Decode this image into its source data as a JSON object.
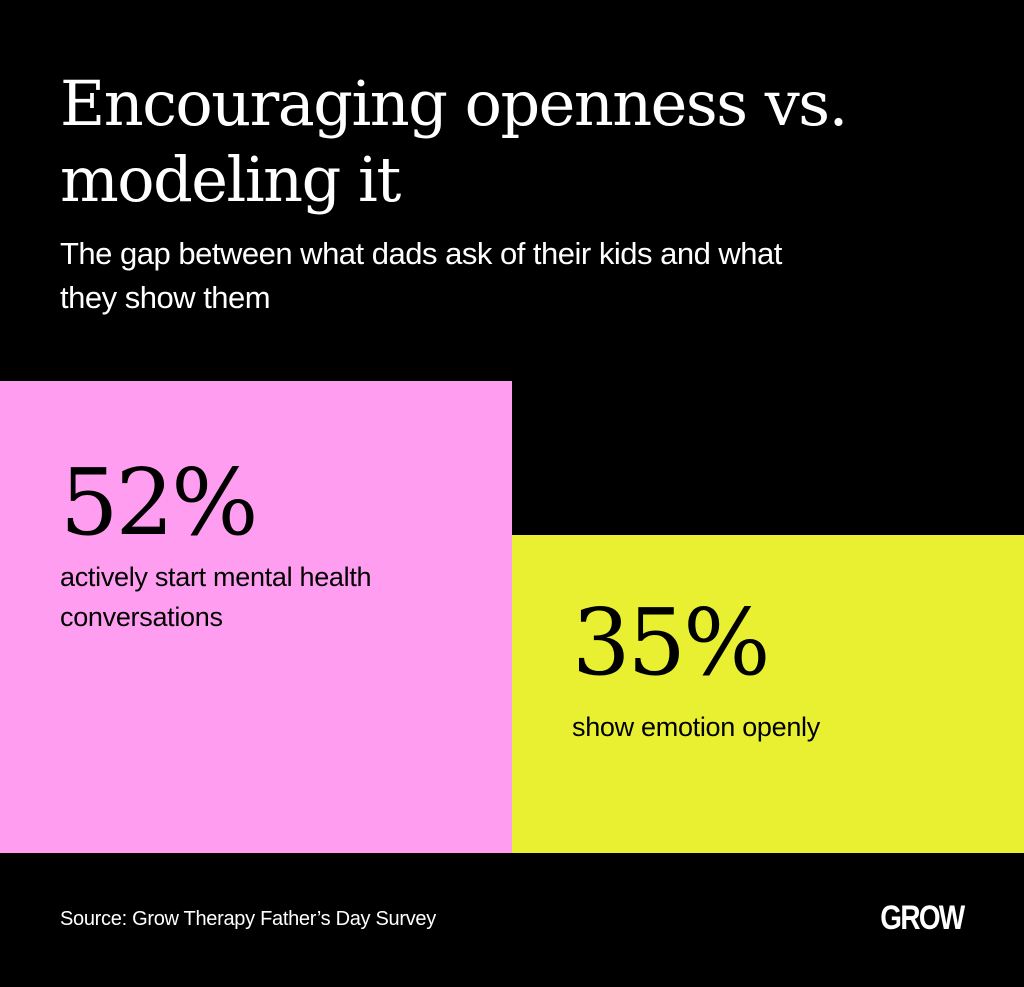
{
  "header": {
    "title": "Encouraging openness vs. modeling it",
    "subtitle": "The gap between what dads ask of their kids and what they show them"
  },
  "chart_data": {
    "type": "bar",
    "title": "Encouraging openness vs. modeling it",
    "subtitle": "The gap between what dads ask of their kids and what they show them",
    "categories": [
      "actively start mental health conversations",
      "show emotion openly"
    ],
    "values": [
      52,
      35
    ],
    "value_labels": [
      "52%",
      "35%"
    ],
    "unit": "%",
    "colors": [
      "#ff9ef0",
      "#e8f031"
    ]
  },
  "footer": {
    "source": "Source: Grow Therapy Father’s Day Survey",
    "logo": "GROW"
  },
  "colors": {
    "background": "#000000",
    "text_light": "#ffffff",
    "text_dark": "#000000"
  }
}
